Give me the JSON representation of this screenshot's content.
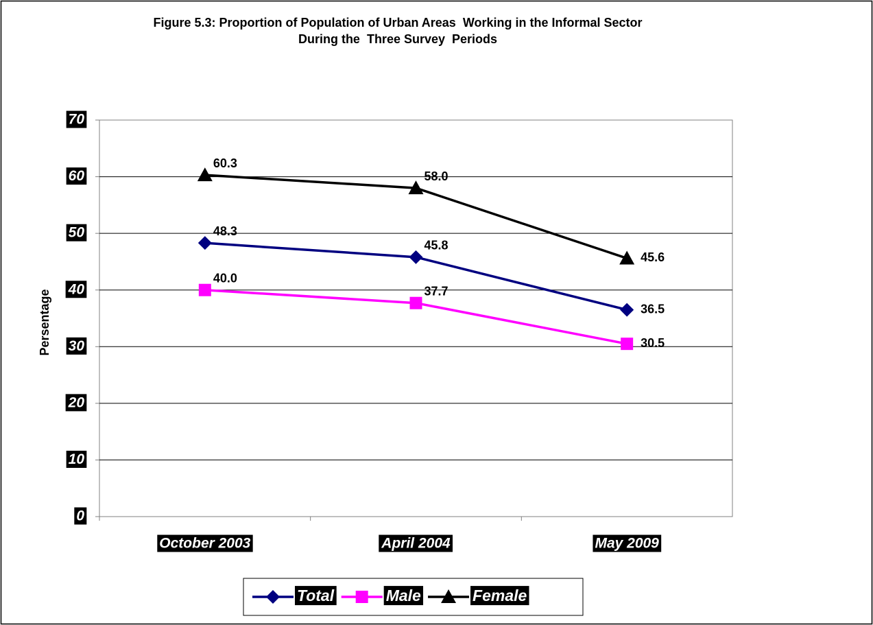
{
  "chart_data": {
    "type": "line",
    "title": [
      "Figure 5.3: Proportion of Population of Urban Areas  Working in the Informal Sector",
      "During the  Three Survey  Periods"
    ],
    "y_label": "Persentage",
    "categories": [
      "October 2003",
      "April 2004",
      "May 2009"
    ],
    "series": [
      {
        "name": "Total",
        "color": "#000080",
        "marker": "diamond",
        "values": [
          48.3,
          45.8,
          36.5
        ],
        "value_labels": [
          "48.3",
          "45.8",
          "36.5"
        ]
      },
      {
        "name": "Male",
        "color": "#ff00ff",
        "marker": "square",
        "values": [
          40.0,
          37.7,
          30.5
        ],
        "value_labels": [
          "40.0",
          "37.7",
          "30.5"
        ]
      },
      {
        "name": "Female",
        "color": "#000000",
        "marker": "triangle",
        "values": [
          60.3,
          58.0,
          45.6
        ],
        "value_labels": [
          "60.3",
          "58.0",
          "45.6"
        ]
      }
    ],
    "ylim": [
      0,
      70
    ],
    "yticks": [
      0,
      10,
      20,
      30,
      40,
      50,
      60,
      70
    ],
    "grid": true,
    "legend": "bottom"
  }
}
